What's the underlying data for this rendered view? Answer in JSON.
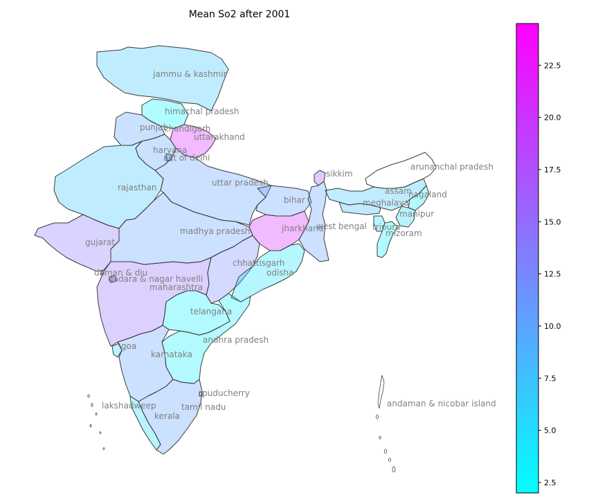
{
  "map": {
    "title": "Mean So2 after 2001",
    "colormap": [
      "#00ffff",
      "#ff00ff"
    ],
    "no_data_color": "#ffffff",
    "states": [
      {
        "name": "jammu & kashmir",
        "value": 7.0
      },
      {
        "name": "himachal pradesh",
        "value": 2.8
      },
      {
        "name": "punjab",
        "value": 10.0
      },
      {
        "name": "chandigarh",
        "value": 10.5
      },
      {
        "name": "uttarakhand",
        "value": 21.0
      },
      {
        "name": "haryana",
        "value": 10.0
      },
      {
        "name": "nct of delhi",
        "value": 10.0
      },
      {
        "name": "rajasthan",
        "value": 7.0
      },
      {
        "name": "uttar pradesh",
        "value": 10.5
      },
      {
        "name": "sikkim",
        "value": 17.0
      },
      {
        "name": "arunachal pradesh",
        "value": null
      },
      {
        "name": "assam",
        "value": 7.0
      },
      {
        "name": "nagaland",
        "value": 4.0
      },
      {
        "name": "meghalaya",
        "value": 8.0
      },
      {
        "name": "manipur",
        "value": 5.0
      },
      {
        "name": "mizoram",
        "value": 3.0
      },
      {
        "name": "tripura",
        "value": 4.5
      },
      {
        "name": "bihar",
        "value": 10.5
      },
      {
        "name": "west bengal",
        "value": 10.5
      },
      {
        "name": "jharkhand",
        "value": 21.0
      },
      {
        "name": "gujarat",
        "value": 14.0
      },
      {
        "name": "madhya pradesh",
        "value": 10.5
      },
      {
        "name": "chhattisgarh",
        "value": 12.5
      },
      {
        "name": "odisha",
        "value": 4.5
      },
      {
        "name": "daman & diu",
        "value": 14.0
      },
      {
        "name": "dadara & nagar havelli",
        "value": 15.0
      },
      {
        "name": "maharashtra",
        "value": 15.0
      },
      {
        "name": "telangana",
        "value": 3.5
      },
      {
        "name": "andhra pradesh",
        "value": 3.5
      },
      {
        "name": "goa",
        "value": 5.0
      },
      {
        "name": "karnataka",
        "value": 10.5
      },
      {
        "name": "kerala",
        "value": 5.0
      },
      {
        "name": "tamil nadu",
        "value": 10.5
      },
      {
        "name": "puducherry",
        "value": 10.5
      },
      {
        "name": "lakshadweep",
        "value": 10.0
      },
      {
        "name": "andaman & nicobar island",
        "value": null
      }
    ],
    "labels": {
      "jk": "jammu & kashmir",
      "hp": "himachal pradesh",
      "pb": "punjab",
      "ch": "chandigarh",
      "uk": "uttarakhand",
      "hr": "haryana",
      "dl": "nct of delhi",
      "rj": "rajasthan",
      "up": "uttar pradesh",
      "sk": "sikkim",
      "ar": "arunanchal pradesh",
      "as": "assam",
      "nl": "nagaland",
      "ml": "meghalaya",
      "tr": "tripura",
      "mn": "manipur",
      "mz": "mizoram",
      "br": "bihar",
      "wb": "west bengal",
      "jh": "jharkhand",
      "gj": "gujarat",
      "mp": "madhya pradesh",
      "cg": "chhattisgarh",
      "od": "odisha",
      "dd": "daman & diu",
      "dn": "dadara & nagar havelli",
      "mh": "maharashtra",
      "tg": "telangana",
      "ap": "andhra pradesh",
      "ga": "goa",
      "ka": "karnataka",
      "ld": "lakshadweep",
      "kl": "kerala",
      "tn": "tamil nadu",
      "py": "puducherry",
      "an": "andaman & nicobar island"
    }
  },
  "colorbar": {
    "min": 2.0,
    "max": 24.5,
    "ticks": [
      2.5,
      5.0,
      7.5,
      10.0,
      12.5,
      15.0,
      17.5,
      20.0,
      22.5
    ],
    "tick_labels": [
      "2.5",
      "5.0",
      "7.5",
      "10.0",
      "12.5",
      "15.0",
      "17.5",
      "20.0",
      "22.5"
    ]
  }
}
